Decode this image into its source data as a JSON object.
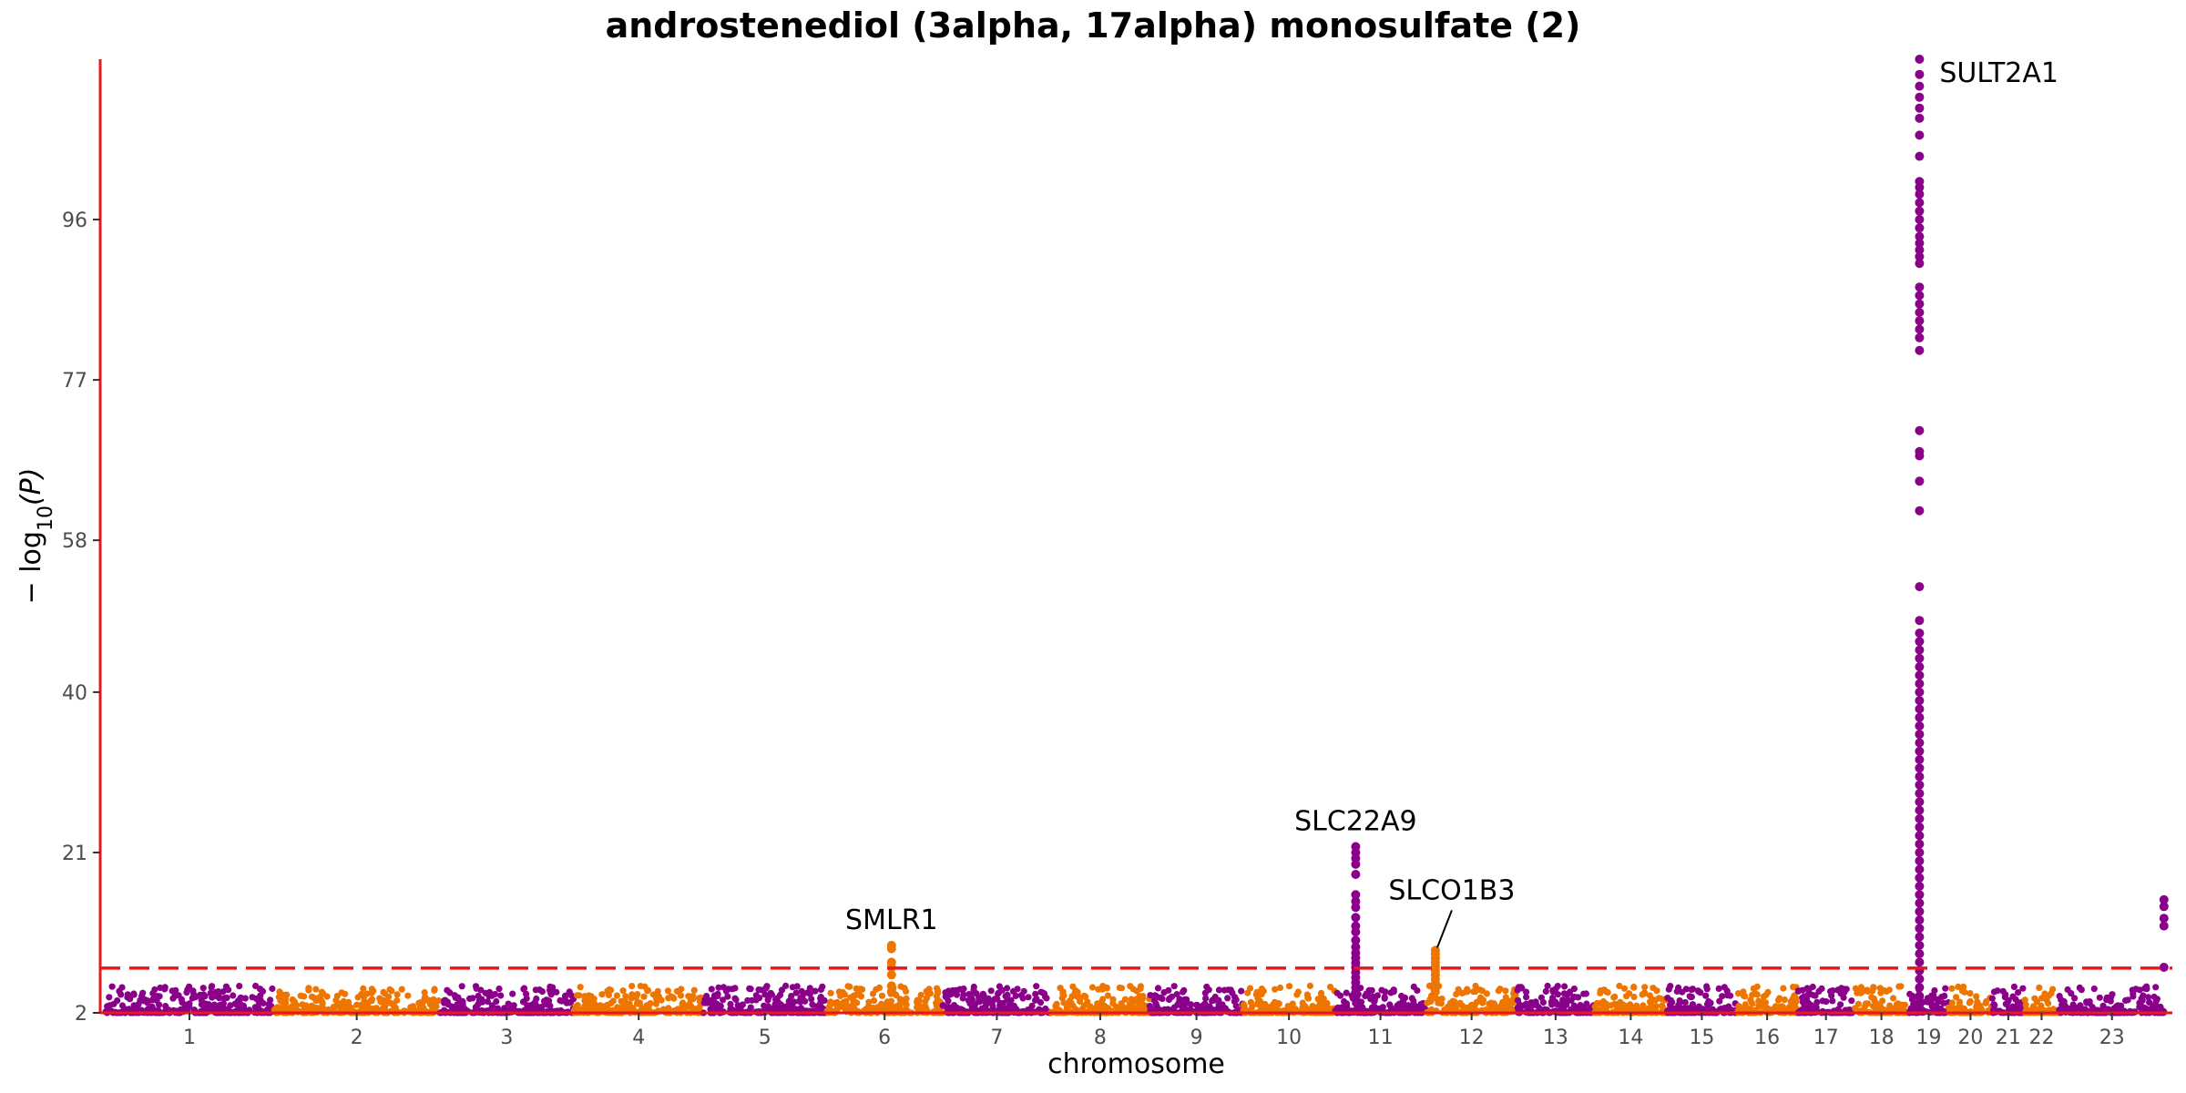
{
  "chart_data": {
    "type": "scatter",
    "subtype": "manhattan",
    "title": "androstenediol (3alpha, 17alpha) monosulfate (2)",
    "xlabel": "chromosome",
    "ylabel_prefix": "− log",
    "ylabel_sub": "10",
    "ylabel_suffix": "(P)",
    "ylim": [
      2,
      115
    ],
    "yticks": [
      2,
      21,
      40,
      58,
      77,
      96
    ],
    "threshold": 7.3,
    "colors": {
      "odd": "#8B008B",
      "even": "#EE7600",
      "threshold": "#E41A1C",
      "axis": "#E41A1C"
    },
    "chromosomes": [
      {
        "label": "1",
        "size": 249
      },
      {
        "label": "2",
        "size": 243
      },
      {
        "label": "3",
        "size": 198
      },
      {
        "label": "4",
        "size": 190
      },
      {
        "label": "5",
        "size": 181
      },
      {
        "label": "6",
        "size": 171
      },
      {
        "label": "7",
        "size": 159
      },
      {
        "label": "8",
        "size": 145
      },
      {
        "label": "9",
        "size": 138
      },
      {
        "label": "10",
        "size": 134
      },
      {
        "label": "11",
        "size": 135
      },
      {
        "label": "12",
        "size": 133
      },
      {
        "label": "13",
        "size": 114
      },
      {
        "label": "14",
        "size": 107
      },
      {
        "label": "15",
        "size": 102
      },
      {
        "label": "16",
        "size": 90
      },
      {
        "label": "17",
        "size": 83
      },
      {
        "label": "18",
        "size": 80
      },
      {
        "label": "19",
        "size": 59
      },
      {
        "label": "20",
        "size": 64
      },
      {
        "label": "21",
        "size": 47
      },
      {
        "label": "22",
        "size": 51
      },
      {
        "label": "23",
        "size": 156
      }
    ],
    "peaks": [
      {
        "chr": 6,
        "pos": 0.56,
        "top": 10,
        "values": [
          10,
          9.6,
          8,
          7.4,
          6.5,
          5.2,
          4.5
        ]
      },
      {
        "chr": 11,
        "pos": 0.23,
        "top": 21.7,
        "values": [
          21.7,
          21,
          20.3,
          19.6,
          18.4,
          16,
          15.2,
          14.5,
          13.3,
          12.3,
          11.6,
          10.6,
          9.8,
          9.1,
          8.5,
          7.9,
          7.4,
          6.8,
          6.2,
          5.6,
          5,
          4.4,
          3.8
        ]
      },
      {
        "chr": 12,
        "pos": 0.1,
        "top": 9.4,
        "values": [
          9.4,
          9,
          8.5,
          8,
          7.5,
          7,
          6.5,
          6,
          5.5,
          5,
          4.5
        ]
      },
      {
        "chr": 19,
        "pos": 0.27,
        "top": 115,
        "values": [
          115,
          113.2,
          111.8,
          110.5,
          109.2,
          108,
          106,
          103.5,
          100.5,
          99.8,
          99,
          98,
          97,
          96,
          95,
          94,
          93.2,
          92.4,
          91.6,
          90.8,
          88,
          87,
          86,
          85,
          84,
          83,
          82,
          80.5,
          71,
          68.5,
          68,
          65,
          61.5,
          52.5,
          48.5,
          47,
          46,
          45,
          44,
          43,
          42,
          41,
          40,
          39,
          38,
          37,
          36,
          35,
          34,
          33,
          32,
          31,
          30,
          29,
          28,
          27,
          26,
          25,
          24,
          23,
          22,
          21,
          20,
          19,
          18,
          17,
          16,
          15,
          14,
          13,
          12,
          11,
          10,
          9,
          8,
          7,
          6,
          5,
          4,
          3
        ]
      },
      {
        "chr": 23,
        "pos": 0.99,
        "top": 15.4,
        "values": [
          15.4,
          14.6,
          13.2,
          12.3,
          7.4
        ]
      }
    ],
    "annotations": [
      {
        "text": "SMLR1",
        "chr": 6,
        "pos": 0.56,
        "y": 10
      },
      {
        "text": "SLC22A9",
        "chr": 11,
        "pos": 0.23,
        "y": 21.7
      },
      {
        "text": "SLCO1B3",
        "chr": 12,
        "pos": 0.1,
        "y": 9.4
      },
      {
        "text": "SULT2A1",
        "chr": 19,
        "pos": 0.27,
        "y": 115
      }
    ]
  }
}
